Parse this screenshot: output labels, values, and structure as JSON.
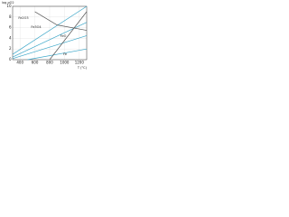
{
  "chart_data": {
    "type": "line",
    "x_label": "T (°C)",
    "y_label": "log pO2",
    "xlim": [
      300,
      1300
    ],
    "xticks": [
      400,
      600,
      800,
      1000,
      1200
    ],
    "ylim": [
      0,
      10
    ],
    "yticks": [
      0,
      2,
      4,
      6,
      8,
      10
    ],
    "grid": true,
    "annotations": [
      "Fe2O3",
      "Fe3O4",
      "FeO",
      "Fe"
    ],
    "series": [
      {
        "color": "#3aa6c8",
        "x": [
          300,
          1300
        ],
        "values": [
          1,
          10
        ]
      },
      {
        "color": "#3aa6c8",
        "x": [
          300,
          1300
        ],
        "values": [
          0.5,
          7
        ]
      },
      {
        "color": "#3aa6c8",
        "x": [
          300,
          1300
        ],
        "values": [
          0.2,
          4.5
        ]
      },
      {
        "color": "#3aa6c8",
        "x": [
          500,
          1300
        ],
        "values": [
          0,
          2
        ]
      },
      {
        "color": "#555555",
        "x": [
          600,
          900,
          1300
        ],
        "values": [
          9,
          6.5,
          5.5
        ]
      },
      {
        "color": "#555555",
        "x": [
          800,
          1300
        ],
        "values": [
          0,
          9
        ]
      }
    ]
  }
}
